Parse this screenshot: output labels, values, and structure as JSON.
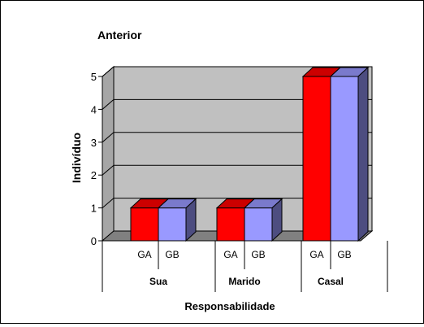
{
  "chart_data": {
    "type": "bar",
    "title": "Anterior",
    "xlabel": "Responsabilidade",
    "ylabel": "Indivíduo",
    "ylim": [
      0,
      5
    ],
    "yticks": [
      "0",
      "1",
      "2",
      "3",
      "4",
      "5"
    ],
    "groups": [
      {
        "label": "Sua",
        "bars": [
          {
            "label": "GA",
            "value": 1
          },
          {
            "label": "GB",
            "value": 1
          }
        ]
      },
      {
        "label": "Marido",
        "bars": [
          {
            "label": "GA",
            "value": 1
          },
          {
            "label": "GB",
            "value": 1
          }
        ]
      },
      {
        "label": "Casal",
        "bars": [
          {
            "label": "GA",
            "value": 5
          },
          {
            "label": "GB",
            "value": 5
          }
        ]
      }
    ],
    "bar_colors": {
      "GA": {
        "front": "#ff0000",
        "top": "#cc0000",
        "side": "#800000"
      },
      "GB": {
        "front": "#9999ff",
        "top": "#7a7acc",
        "side": "#4d4d80"
      }
    },
    "plot_wall_color": "#c0c0c0",
    "floor_color": "#808080",
    "grid": true,
    "style": "3d-column"
  }
}
